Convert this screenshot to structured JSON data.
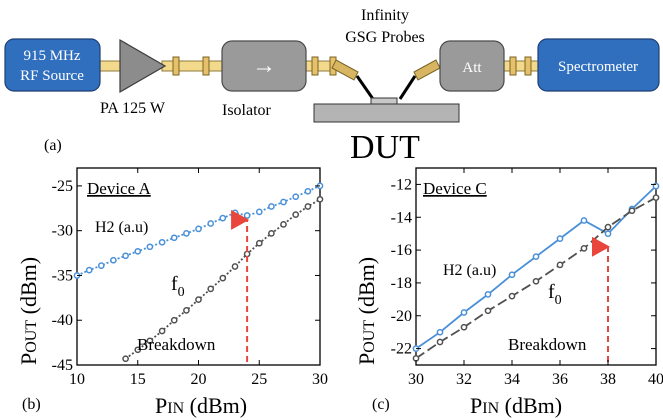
{
  "schematic": {
    "rf_source_label_line1": "915 MHz",
    "rf_source_label_line2": "RF Source",
    "pa_label": "PA 125 W",
    "isolator_label": "Isolator",
    "isolator_symbol": "→",
    "probes_label_line1": "Infinity",
    "probes_label_line2": "GSG Probes",
    "att_label": "Att",
    "spectrometer_label": "Spectrometer",
    "dut_label": "DUT",
    "panel_label": "(a)"
  },
  "colors": {
    "blue_box": "#2f6fbe",
    "gray_box": "#9a9a9a",
    "series_blue": "#4a90d9",
    "series_black": "#505050",
    "breakdown_red": "#e8453c"
  },
  "chart_data": [
    {
      "type": "line",
      "panel_label": "(b)",
      "title": "Device A",
      "xlabel": "PIN (dBm)",
      "ylabel": "POUT (dBm)",
      "xlim": [
        10,
        30
      ],
      "ylim": [
        -45,
        -23
      ],
      "xticks": [
        10,
        15,
        20,
        25,
        30
      ],
      "yticks": [
        -25,
        -30,
        -35,
        -40,
        -45
      ],
      "series": [
        {
          "name": "H2 (a.u)",
          "color": "#4a90d9",
          "x": [
            10,
            11,
            12,
            13,
            14,
            15,
            16,
            17,
            18,
            19,
            20,
            21,
            22,
            23,
            24,
            25,
            26,
            27,
            28,
            29,
            30
          ],
          "y": [
            -35.0,
            -34.4,
            -33.9,
            -33.3,
            -32.8,
            -32.3,
            -31.8,
            -31.3,
            -30.8,
            -30.3,
            -29.8,
            -29.2,
            -28.6,
            -28.0,
            -28.3,
            -27.9,
            -27.3,
            -26.8,
            -26.2,
            -25.6,
            -25.0
          ]
        },
        {
          "name": "f0",
          "color": "#505050",
          "x": [
            14,
            15,
            16,
            17,
            18,
            19,
            20,
            21,
            22,
            23,
            24,
            25,
            26,
            27,
            28,
            29,
            30
          ],
          "y": [
            -44.3,
            -43.3,
            -42.3,
            -41.2,
            -40.0,
            -38.9,
            -37.7,
            -36.5,
            -35.3,
            -34.0,
            -32.6,
            -31.4,
            -30.3,
            -29.3,
            -28.2,
            -27.3,
            -26.5
          ]
        }
      ],
      "annotation": {
        "text": "Breakdown",
        "x": 24
      },
      "grid": false
    },
    {
      "type": "line",
      "panel_label": "(c)",
      "title": "Device C",
      "xlabel": "PIN (dBm)",
      "ylabel": "POUT (dBm)",
      "xlim": [
        30,
        40
      ],
      "ylim": [
        -23,
        -11
      ],
      "xticks": [
        30,
        32,
        34,
        36,
        38,
        40
      ],
      "yticks": [
        -12,
        -14,
        -16,
        -18,
        -20,
        -22
      ],
      "series": [
        {
          "name": "H2 (a.u)",
          "color": "#4a90d9",
          "x": [
            30,
            31,
            32,
            33,
            34,
            35,
            36,
            37,
            38,
            39,
            40
          ],
          "y": [
            -22.0,
            -21.0,
            -19.8,
            -18.7,
            -17.5,
            -16.4,
            -15.3,
            -14.2,
            -15.0,
            -13.5,
            -12.1
          ]
        },
        {
          "name": "f0",
          "color": "#505050",
          "x": [
            30,
            31,
            32,
            33,
            34,
            35,
            36,
            37,
            38,
            39,
            40
          ],
          "y": [
            -22.6,
            -21.6,
            -20.7,
            -19.7,
            -18.8,
            -17.9,
            -16.9,
            -15.9,
            -14.6,
            -13.6,
            -12.8
          ]
        }
      ],
      "annotation": {
        "text": "Breakdown",
        "x": 38
      },
      "grid": false
    }
  ]
}
